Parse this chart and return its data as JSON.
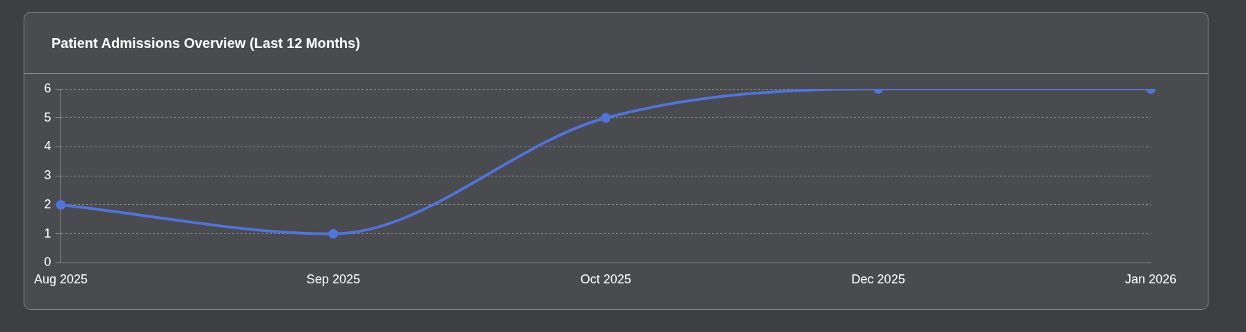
{
  "chart_data": {
    "type": "line",
    "title": "Patient Admissions Overview (Last 12 Months)",
    "categories": [
      "Aug 2025",
      "Sep 2025",
      "Oct 2025",
      "Dec 2025",
      "Jan 2026"
    ],
    "series": [
      {
        "color": "#4f74dc",
        "values": [
          2,
          1,
          5,
          6,
          6
        ]
      }
    ],
    "ylim": [
      0,
      6
    ],
    "yticks": [
      0,
      1,
      2,
      3,
      4,
      5,
      6
    ],
    "grid": "y",
    "legend": false,
    "marker": "circle",
    "line_style": "solid"
  }
}
